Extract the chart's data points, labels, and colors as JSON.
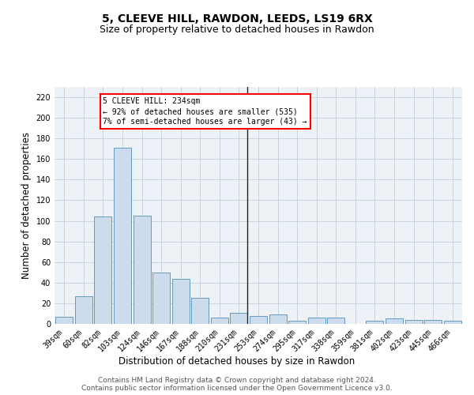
{
  "title1": "5, CLEEVE HILL, RAWDON, LEEDS, LS19 6RX",
  "title2": "Size of property relative to detached houses in Rawdon",
  "xlabel": "Distribution of detached houses by size in Rawdon",
  "ylabel": "Number of detached properties",
  "categories": [
    "39sqm",
    "60sqm",
    "82sqm",
    "103sqm",
    "124sqm",
    "146sqm",
    "167sqm",
    "188sqm",
    "210sqm",
    "231sqm",
    "253sqm",
    "274sqm",
    "295sqm",
    "317sqm",
    "338sqm",
    "359sqm",
    "381sqm",
    "402sqm",
    "423sqm",
    "445sqm",
    "466sqm"
  ],
  "values": [
    7,
    27,
    104,
    171,
    105,
    50,
    44,
    25,
    6,
    11,
    8,
    9,
    3,
    6,
    6,
    0,
    3,
    5,
    4,
    4,
    3
  ],
  "bar_color": "#ccdcec",
  "bar_edge_color": "#6699bb",
  "vline_index": 9,
  "annotation_title": "5 CLEEVE HILL: 234sqm",
  "annotation_line1": "← 92% of detached houses are smaller (535)",
  "annotation_line2": "7% of semi-detached houses are larger (43) →",
  "yticks": [
    0,
    20,
    40,
    60,
    80,
    100,
    120,
    140,
    160,
    180,
    200,
    220
  ],
  "ylim": [
    0,
    230
  ],
  "footer1": "Contains HM Land Registry data © Crown copyright and database right 2024.",
  "footer2": "Contains public sector information licensed under the Open Government Licence v3.0.",
  "bg_color": "#edf2f7",
  "grid_color": "#c5cfd8",
  "title_fontsize": 10,
  "subtitle_fontsize": 9,
  "axis_label_fontsize": 8.5,
  "tick_fontsize": 7,
  "footer_fontsize": 6.5
}
